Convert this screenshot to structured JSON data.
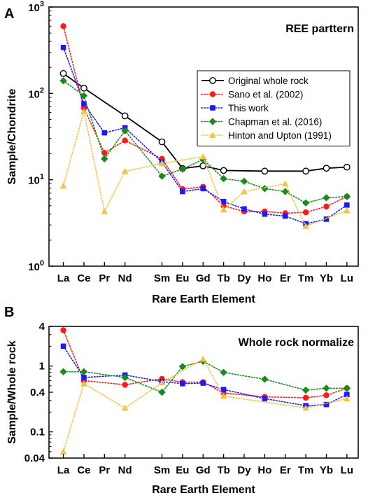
{
  "chart_data": [
    {
      "type": "line",
      "panel_label": "A",
      "annotation": "REE parttern",
      "xlabel": "Rare Earth Element",
      "ylabel": "Sample/Chondrite",
      "yscale": "log",
      "ylim": [
        1,
        1000
      ],
      "yticks": [
        1,
        10,
        100,
        1000
      ],
      "ytick_labels": [
        "10^0",
        "10^1",
        "10^2",
        "10^3"
      ],
      "categories": [
        "La",
        "Ce",
        "Pr",
        "Nd",
        "Sm",
        "Eu",
        "Gd",
        "Tb",
        "Dy",
        "Ho",
        "Er",
        "Tm",
        "Yb",
        "Lu"
      ],
      "category_positions": [
        1,
        2,
        3,
        4,
        5.8,
        6.8,
        7.8,
        8.8,
        9.8,
        10.8,
        11.8,
        12.8,
        13.8,
        14.8
      ],
      "legend_position": "right-middle",
      "series": [
        {
          "name": "Original whole rock",
          "color": "#000000",
          "marker": "open-circle",
          "line": "solid",
          "values": [
            170,
            115,
            null,
            55,
            27.5,
            13.5,
            14.5,
            12.8,
            null,
            12.6,
            null,
            12.6,
            13.6,
            14
          ]
        },
        {
          "name": "Sano et al. (2002)",
          "color": "#ff1a1a",
          "marker": "circle",
          "line": "dotted",
          "values": [
            600,
            68,
            20.5,
            28.5,
            17.5,
            7.8,
            8.3,
            5.0,
            4.3,
            4.3,
            4.1,
            4.2,
            4.9,
            6.4
          ]
        },
        {
          "name": "This work",
          "color": "#1a1aff",
          "marker": "square",
          "line": "dotted",
          "values": [
            340,
            76,
            35,
            40,
            16,
            7.3,
            7.9,
            5.6,
            4.6,
            4.0,
            3.8,
            3.1,
            3.5,
            5.1
          ]
        },
        {
          "name": "Chapman et al. (2016)",
          "color": "#1a8a1a",
          "marker": "diamond",
          "line": "dotted",
          "values": [
            140,
            94,
            17.5,
            37,
            11,
            13.3,
            17.2,
            10.3,
            9.6,
            7.9,
            7.3,
            5.4,
            6.2,
            6.4
          ]
        },
        {
          "name": "Hinton and Upton (1991)",
          "color": "#f5c242",
          "marker": "triangle",
          "line": "dotted",
          "values": [
            8.5,
            62,
            4.3,
            12.5,
            15.5,
            null,
            18.5,
            4.5,
            7.3,
            null,
            9.0,
            2.9,
            null,
            4.4
          ]
        }
      ]
    },
    {
      "type": "line",
      "panel_label": "B",
      "annotation": "Whole rock normalize",
      "xlabel": "Rare Earth Element",
      "ylabel": "Sample/Whole rock",
      "yscale": "log",
      "ylim": [
        0.04,
        4
      ],
      "yticks": [
        0.04,
        0.1,
        0.4,
        1,
        4
      ],
      "ytick_labels": [
        "0.04",
        "0.1",
        "0.4",
        "1",
        "4"
      ],
      "categories": [
        "La",
        "Ce",
        "Pr",
        "Nd",
        "Sm",
        "Eu",
        "Gd",
        "Tb",
        "Dy",
        "Ho",
        "Er",
        "Tm",
        "Yb",
        "Lu"
      ],
      "category_positions": [
        1,
        2,
        3,
        4,
        5.8,
        6.8,
        7.8,
        8.8,
        9.8,
        10.8,
        11.8,
        12.8,
        13.8,
        14.8
      ],
      "series": [
        {
          "name": "Sano et al. (2002)",
          "color": "#ff1a1a",
          "marker": "circle",
          "line": "dotted",
          "values": [
            3.5,
            0.6,
            null,
            0.52,
            0.64,
            0.57,
            0.57,
            0.39,
            null,
            0.34,
            null,
            0.33,
            0.36,
            0.46
          ]
        },
        {
          "name": "This work",
          "color": "#1a1aff",
          "marker": "square",
          "line": "dotted",
          "values": [
            2.0,
            0.67,
            null,
            0.73,
            0.58,
            0.54,
            0.55,
            0.44,
            null,
            0.32,
            null,
            0.25,
            0.26,
            0.37
          ]
        },
        {
          "name": "Chapman et al. (2016)",
          "color": "#1a8a1a",
          "marker": "diamond",
          "line": "dotted",
          "values": [
            0.82,
            0.82,
            null,
            0.67,
            0.4,
            0.98,
            1.18,
            0.8,
            null,
            0.63,
            null,
            0.43,
            0.46,
            0.46
          ]
        },
        {
          "name": "Hinton and Upton (1991)",
          "color": "#f5c242",
          "marker": "triangle",
          "line": "dotted",
          "values": [
            0.05,
            0.54,
            null,
            0.23,
            0.56,
            null,
            1.28,
            0.35,
            null,
            null,
            null,
            0.23,
            null,
            0.32
          ]
        }
      ]
    }
  ]
}
